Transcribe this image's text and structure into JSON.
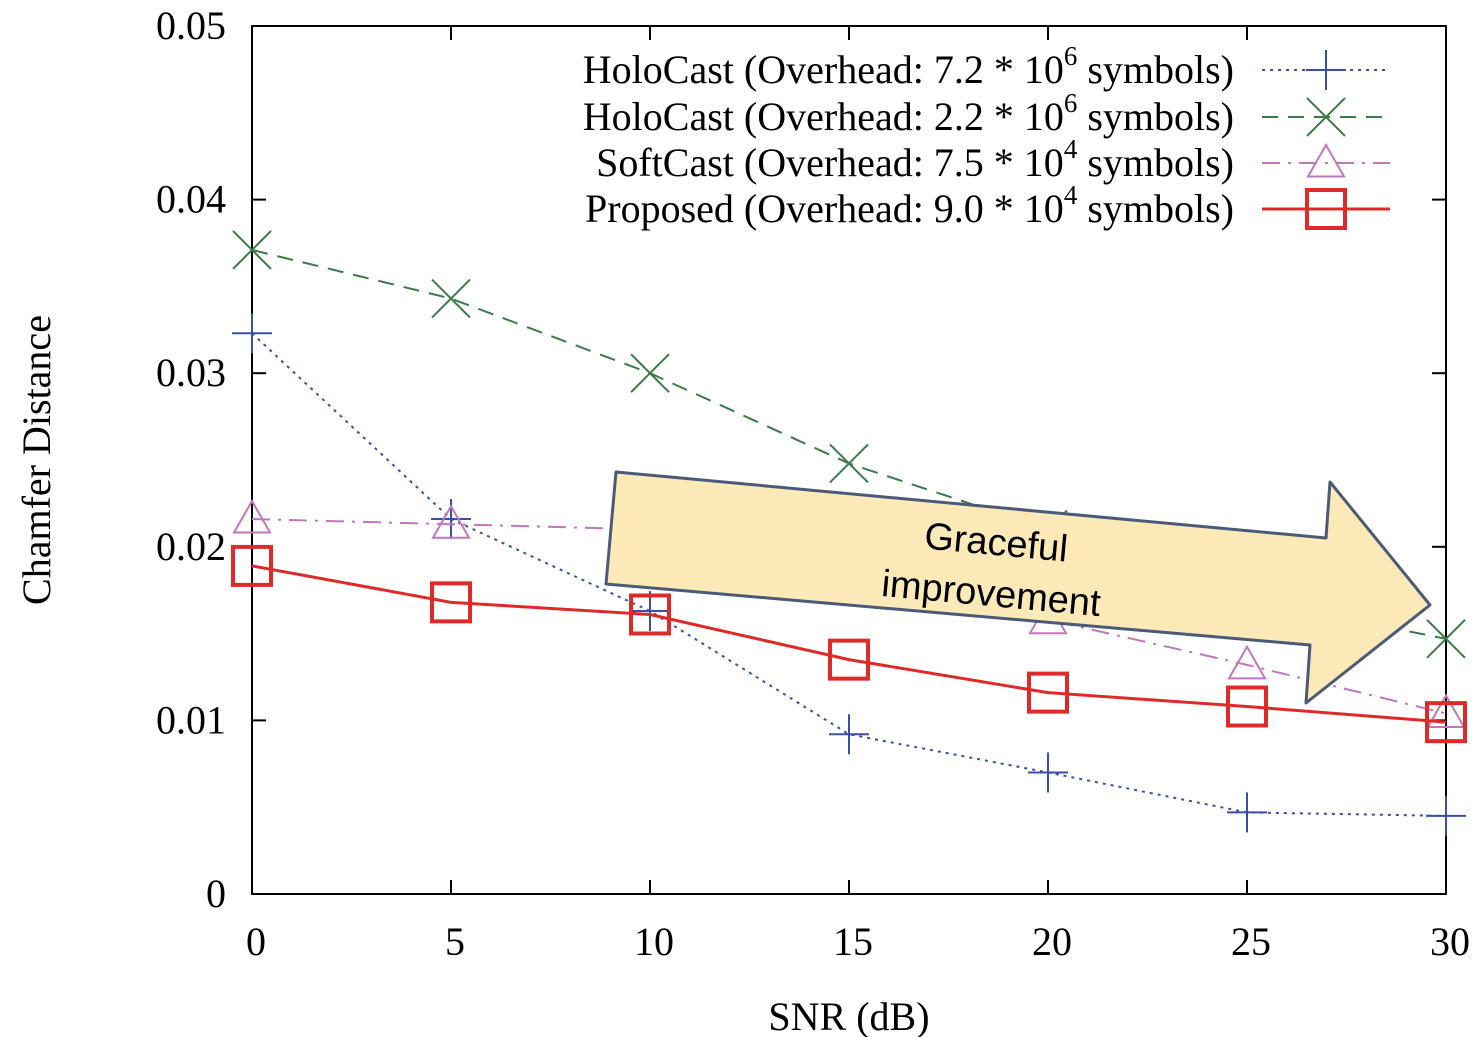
{
  "chart_data": {
    "type": "line",
    "xlabel": "SNR (dB)",
    "ylabel": "Chamfer Distance",
    "xlim": [
      0,
      30
    ],
    "ylim": [
      0,
      0.05
    ],
    "x_ticks": [
      0,
      5,
      10,
      15,
      20,
      25,
      30
    ],
    "y_ticks": [
      0,
      0.01,
      0.02,
      0.03,
      0.04,
      0.05
    ],
    "x_tick_labels": [
      "0",
      "5",
      "10",
      "15",
      "20",
      "25",
      "30"
    ],
    "y_tick_labels": [
      "0",
      "0.01",
      "0.02",
      "0.03",
      "0.04",
      "0.05"
    ],
    "grid": false,
    "legend_position": "top-right",
    "x": [
      0,
      5,
      10,
      15,
      20,
      25,
      30
    ],
    "series": [
      {
        "name": "HoloCast (Overhead: 7.2 * 10^6 symbols)",
        "legend_base": "HoloCast (Overhead: 7.2 * 10",
        "legend_exp": "6",
        "legend_tail": " symbols)",
        "values": [
          0.0323,
          0.0216,
          0.0163,
          0.0092,
          0.007,
          0.0047,
          0.0045
        ],
        "color": "#3a4fa8",
        "marker": "plus",
        "dash": "dotted"
      },
      {
        "name": "HoloCast (Overhead: 2.2 * 10^6 symbols)",
        "legend_base": "HoloCast (Overhead: 2.2 * 10",
        "legend_exp": "6",
        "legend_tail": " symbols)",
        "values": [
          0.0371,
          0.0343,
          0.03,
          0.0248,
          0.021,
          0.017,
          0.0147
        ],
        "color": "#3d7a4a",
        "marker": "cross",
        "dash": "dashed"
      },
      {
        "name": "SoftCast (Overhead: 7.5 * 10^4 symbols)",
        "legend_base": "SoftCast (Overhead: 7.5 * 10",
        "legend_exp": "4",
        "legend_tail": " symbols)",
        "values": [
          0.0216,
          0.0213,
          0.021,
          0.0185,
          0.0158,
          0.0132,
          0.0104
        ],
        "color": "#c176bd",
        "marker": "triangle",
        "dash": "dashdot"
      },
      {
        "name": "Proposed (Overhead: 9.0 * 10^4 symbols)",
        "legend_base": "Proposed (Overhead: 9.0 * 10",
        "legend_exp": "4",
        "legend_tail": " symbols)",
        "values": [
          0.0189,
          0.0168,
          0.0161,
          0.0135,
          0.0116,
          0.0108,
          0.0099
        ],
        "color": "#e02a2a",
        "marker": "square",
        "dash": "solid"
      }
    ],
    "annotation": {
      "lines": [
        "Graceful",
        "improvement"
      ],
      "fill": "#fbe9b7",
      "stroke": "#4a5a78"
    }
  }
}
